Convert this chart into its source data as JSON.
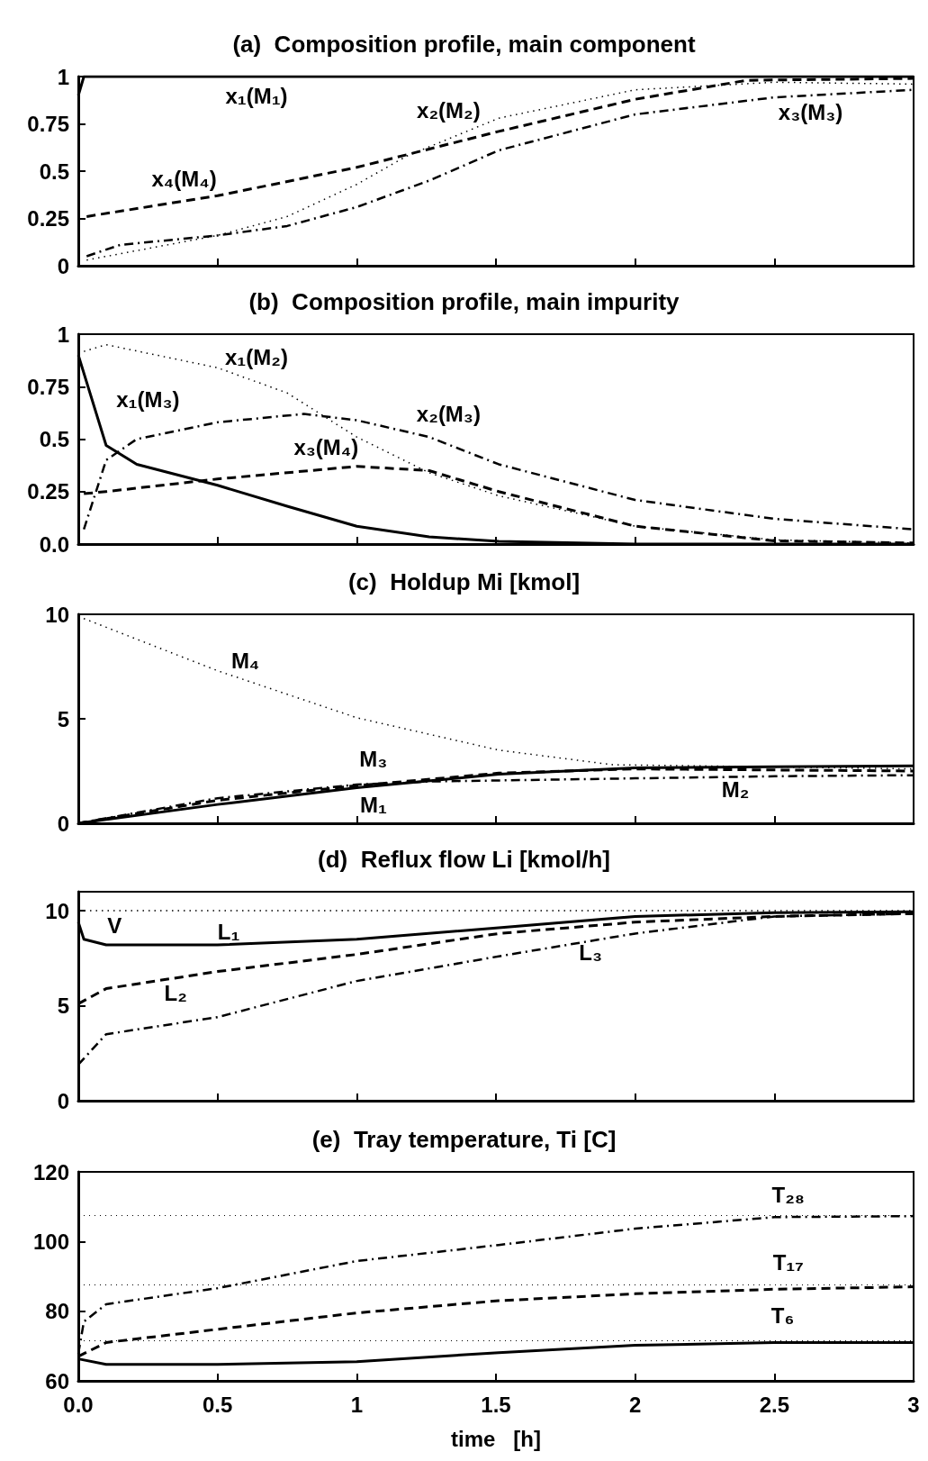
{
  "chart_data": [
    {
      "type": "line",
      "title": "(a)  Composition profile, main component",
      "xlim": [
        0,
        3
      ],
      "xticks": [
        0.5,
        1,
        1.5,
        2,
        2.5
      ],
      "ylim": [
        0,
        1
      ],
      "yticks": [
        0,
        0.25,
        0.5,
        0.75,
        1
      ],
      "tick_labels": "y",
      "series": [
        {
          "name": "x₁(M₁)",
          "color": "#000000",
          "line_style": "solid",
          "x": [
            0,
            0.02,
            3
          ],
          "values": [
            0.9,
            1,
            1
          ]
        },
        {
          "name": "x₂(M₂)",
          "color": "#000000",
          "line_style": "dotted",
          "x": [
            0.03,
            0.5,
            0.75,
            1,
            1.18,
            1.51,
            2,
            2.5,
            3
          ],
          "values": [
            0.03,
            0.16,
            0.26,
            0.43,
            0.58,
            0.78,
            0.93,
            0.97,
            0.96
          ]
        },
        {
          "name": "x₃(M₃)",
          "color": "#000000",
          "line_style": "dashdot",
          "x": [
            0.03,
            0.15,
            0.5,
            0.75,
            1,
            1.26,
            1.51,
            2,
            2.5,
            3
          ],
          "values": [
            0.05,
            0.11,
            0.16,
            0.21,
            0.31,
            0.45,
            0.61,
            0.8,
            0.89,
            0.93
          ]
        },
        {
          "name": "x₄(M₄)",
          "color": "#000000",
          "line_style": "dashed",
          "x": [
            0.03,
            0.5,
            1,
            1.51,
            2,
            2.4,
            3
          ],
          "values": [
            0.26,
            0.37,
            0.52,
            0.71,
            0.88,
            0.98,
            0.99
          ]
        }
      ]
    },
    {
      "type": "line",
      "title": "(b)  Composition profile, main impurity",
      "xlim": [
        0,
        3
      ],
      "xticks": [
        0.5,
        1,
        1.5,
        2,
        2.5
      ],
      "ylim": [
        0,
        1
      ],
      "yticks": [
        {
          "value": 0,
          "label": "0.0"
        },
        0.25,
        0.5,
        0.75,
        1
      ],
      "tick_labels": "y",
      "series": [
        {
          "name": "x₁(M₃)",
          "color": "#000000",
          "line_style": "solid",
          "x": [
            0,
            0.1,
            0.21,
            0.5,
            0.75,
            1,
            1.26,
            1.51,
            2,
            3
          ],
          "values": [
            0.9,
            0.47,
            0.38,
            0.28,
            0.18,
            0.085,
            0.034,
            0.013,
            0,
            0
          ]
        },
        {
          "name": "x₁(M₂)",
          "color": "#000000",
          "line_style": "dotted",
          "x": [
            0,
            0.1,
            0.5,
            0.75,
            1,
            1.26,
            1.51,
            2,
            2.5,
            3
          ],
          "values": [
            0.91,
            0.95,
            0.84,
            0.72,
            0.51,
            0.34,
            0.23,
            0.085,
            0.02,
            0.005
          ]
        },
        {
          "name": "x₂(M₃)",
          "color": "#000000",
          "line_style": "dashdot",
          "x": [
            0.02,
            0.1,
            0.21,
            0.5,
            0.81,
            1,
            1.26,
            1.51,
            2,
            2.5,
            3
          ],
          "values": [
            0.07,
            0.4,
            0.5,
            0.58,
            0.62,
            0.59,
            0.51,
            0.38,
            0.21,
            0.12,
            0.07
          ]
        },
        {
          "name": "x₃(M₄)",
          "color": "#000000",
          "line_style": "dashed",
          "x": [
            0.02,
            0.1,
            0.5,
            1,
            1.26,
            1.51,
            2,
            2.5,
            3
          ],
          "values": [
            0.24,
            0.25,
            0.31,
            0.37,
            0.35,
            0.25,
            0.085,
            0.015,
            0.005
          ]
        }
      ]
    },
    {
      "type": "line",
      "title": "(c)  Holdup Mi [kmol]",
      "xlim": [
        0,
        3
      ],
      "xticks": [
        0.5,
        1,
        1.5,
        2,
        2.5
      ],
      "ylim": [
        0,
        10
      ],
      "yticks": [
        0,
        5,
        10
      ],
      "tick_labels": "y",
      "series": [
        {
          "name": "M₄",
          "color": "#000000",
          "line_style": "dotted",
          "x": [
            0,
            0.5,
            1,
            1.51,
            1.92,
            2.5,
            3
          ],
          "values": [
            9.9,
            7.3,
            5.05,
            3.5,
            2.8,
            2.7,
            2.6
          ]
        },
        {
          "name": "M₁",
          "color": "#000000",
          "line_style": "solid",
          "x": [
            0,
            0.5,
            1,
            1.51,
            2,
            2.5,
            3
          ],
          "values": [
            0,
            0.9,
            1.7,
            2.35,
            2.65,
            2.7,
            2.75
          ]
        },
        {
          "name": "M₃",
          "color": "#000000",
          "line_style": "dashed",
          "x": [
            0,
            0.5,
            1,
            1.51,
            2,
            2.5,
            3
          ],
          "values": [
            0,
            1.1,
            1.8,
            2.4,
            2.6,
            2.55,
            2.5
          ]
        },
        {
          "name": "M₂",
          "color": "#000000",
          "line_style": "dashdot",
          "x": [
            0,
            0.5,
            1,
            1.26,
            1.51,
            2,
            2.5,
            3
          ],
          "values": [
            0,
            1.2,
            1.85,
            2,
            2.05,
            2.15,
            2.25,
            2.3
          ]
        }
      ]
    },
    {
      "type": "line",
      "title": "(d)  Reflux flow Li [kmol/h]",
      "xlim": [
        0,
        3
      ],
      "xticks": [
        0.5,
        1,
        1.5,
        2,
        2.5
      ],
      "ylim": [
        0,
        11
      ],
      "yticks": [
        0,
        5,
        10
      ],
      "tick_labels": "y",
      "series": [
        {
          "name": "V",
          "color": "#000000",
          "line_style": "dotted",
          "x": [
            0,
            3
          ],
          "values": [
            10,
            10
          ]
        },
        {
          "name": "L₁",
          "color": "#000000",
          "line_style": "solid",
          "x": [
            0,
            0.02,
            0.1,
            0.5,
            1,
            1.51,
            2,
            2.5,
            3
          ],
          "values": [
            9.4,
            8.5,
            8.2,
            8.2,
            8.5,
            9.1,
            9.7,
            9.9,
            9.95
          ]
        },
        {
          "name": "L₂",
          "color": "#000000",
          "line_style": "dashed",
          "x": [
            0,
            0.1,
            0.5,
            1,
            1.51,
            2,
            2.5,
            3
          ],
          "values": [
            5.1,
            5.9,
            6.8,
            7.7,
            8.8,
            9.4,
            9.7,
            9.85
          ]
        },
        {
          "name": "L₃",
          "color": "#000000",
          "line_style": "dashdot",
          "x": [
            0,
            0.1,
            0.5,
            1,
            1.51,
            2,
            2.5,
            3
          ],
          "values": [
            1.9,
            3.5,
            4.4,
            6.3,
            7.6,
            8.8,
            9.7,
            9.85
          ]
        }
      ]
    },
    {
      "type": "line",
      "title": "(e)  Tray temperature, Ti [C]",
      "xlabel": "time   [h]",
      "xlim": [
        0,
        3
      ],
      "xticks": [
        {
          "value": 0,
          "label": "0.0"
        },
        0.5,
        1,
        1.5,
        2,
        2.5,
        3
      ],
      "ylim": [
        60,
        120
      ],
      "yticks": [
        60,
        80,
        100,
        120
      ],
      "series": [
        {
          "name": "T₂₈",
          "color": "#000000",
          "line_style": "dashdot",
          "x": [
            0,
            0.02,
            0.1,
            0.5,
            1,
            1.51,
            2,
            2.5,
            3
          ],
          "values": [
            67.8,
            77,
            82,
            86.6,
            94.4,
            99,
            103.7,
            107,
            107.3
          ]
        },
        {
          "name": "T₁₇",
          "color": "#000000",
          "line_style": "dashed",
          "x": [
            0,
            0.1,
            0.5,
            1,
            1.51,
            2,
            2.5,
            3
          ],
          "values": [
            67,
            71,
            74.8,
            79.5,
            83,
            85,
            86.3,
            87
          ]
        },
        {
          "name": "T₆",
          "color": "#000000",
          "line_style": "solid",
          "x": [
            0,
            0.1,
            0.5,
            1,
            1.51,
            2,
            2.5,
            3
          ],
          "values": [
            66.3,
            64.7,
            64.7,
            65.5,
            68.1,
            70.2,
            71,
            71
          ]
        }
      ],
      "ref_lines": [
        {
          "axis": "y",
          "value": 107.5,
          "color": "#000000",
          "line_style": "dotted"
        },
        {
          "axis": "y",
          "value": 87.5,
          "color": "#000000",
          "line_style": "dotted"
        },
        {
          "axis": "y",
          "value": 71.5,
          "color": "#000000",
          "line_style": "dotted"
        }
      ]
    }
  ]
}
